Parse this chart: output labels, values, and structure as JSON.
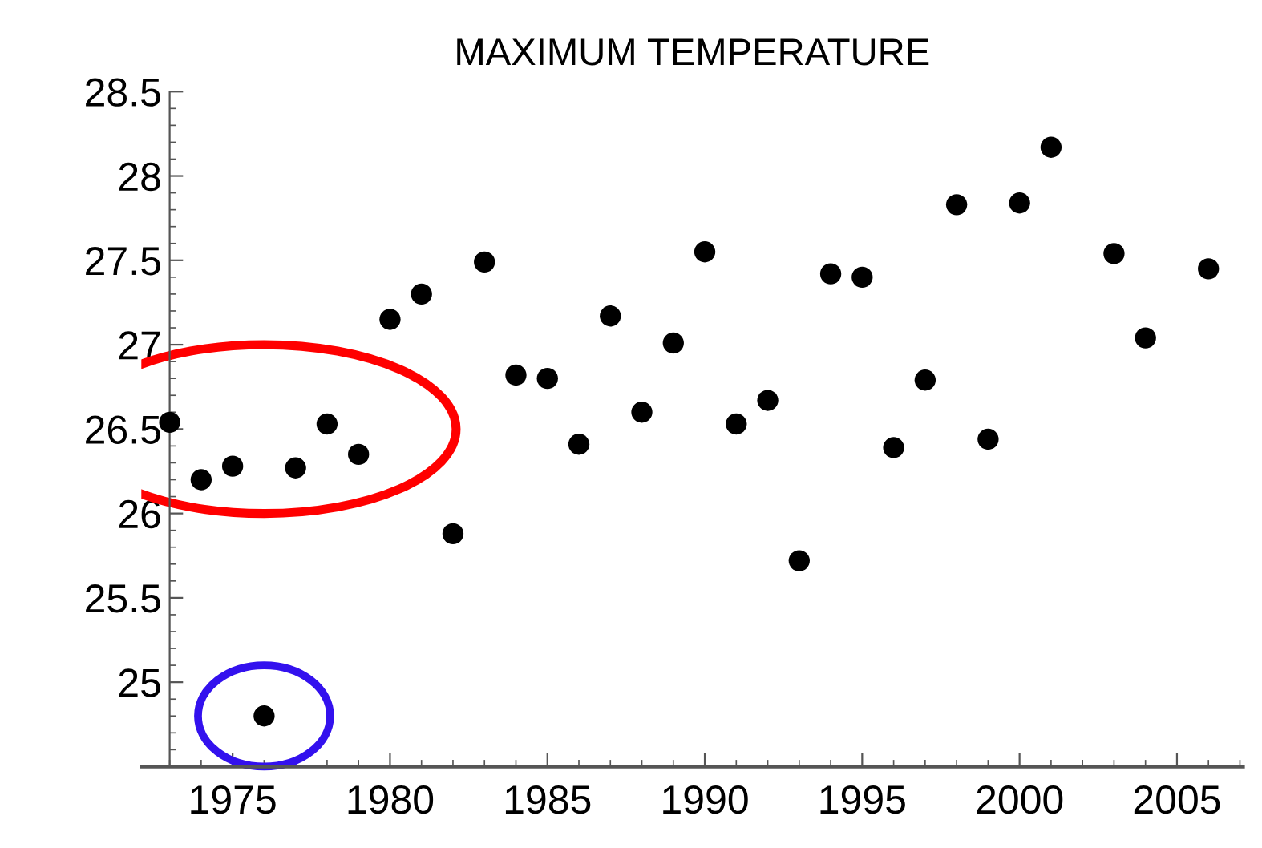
{
  "chart_data": {
    "type": "scatter",
    "title": "MAXIMUM TEMPERATURE",
    "x": [
      1973,
      1974,
      1975,
      1976,
      1977,
      1978,
      1979,
      1980,
      1981,
      1982,
      1983,
      1984,
      1985,
      1986,
      1987,
      1988,
      1989,
      1990,
      1991,
      1992,
      1993,
      1994,
      1995,
      1996,
      1997,
      1998,
      1999,
      2000,
      2001,
      2003,
      2004,
      2006
    ],
    "series": [
      {
        "color": "#000000",
        "values": [
          26.54,
          26.2,
          26.28,
          24.8,
          26.27,
          26.53,
          26.35,
          27.15,
          27.3,
          25.88,
          27.49,
          26.82,
          26.8,
          26.41,
          27.17,
          26.6,
          27.01,
          27.55,
          26.53,
          26.67,
          25.72,
          27.42,
          27.4,
          26.39,
          26.79,
          27.83,
          26.44,
          27.84,
          28.17,
          27.54,
          27.04,
          27.45
        ]
      }
    ],
    "xlim": [
      1972.1,
      2007.1
    ],
    "ylim": [
      24.5,
      28.5
    ],
    "xticks": [
      1975,
      1980,
      1985,
      1990,
      1995,
      2000,
      2005
    ],
    "yticks": [
      25,
      25.5,
      26,
      26.5,
      27,
      27.5,
      28,
      28.5
    ],
    "marker": "circle",
    "grid": false,
    "legend": false
  }
}
